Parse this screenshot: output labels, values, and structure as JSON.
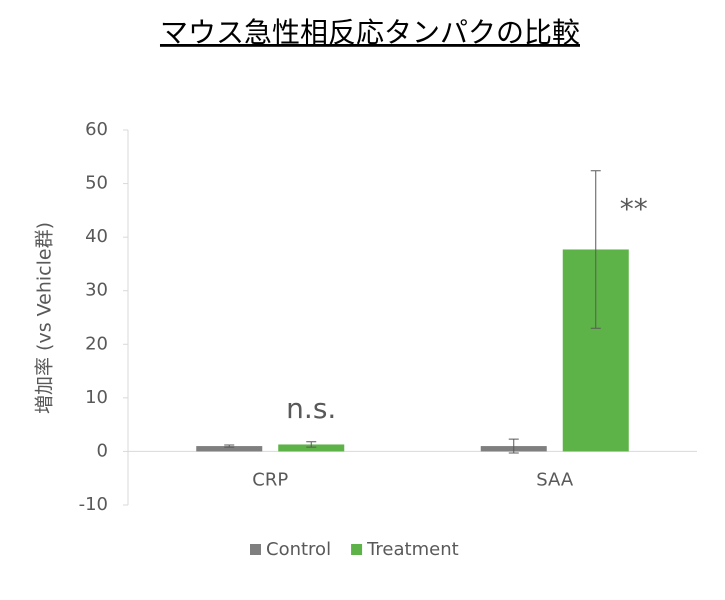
{
  "chart_data": {
    "type": "bar",
    "title": "マウス急性相反応タンパクの比較",
    "y_label": "増加率 (vs Vehicle群)",
    "categories": [
      "CRP",
      "SAA"
    ],
    "series": [
      {
        "name": "Control",
        "color": "#7f7f7f",
        "values": [
          1,
          1
        ],
        "errors": [
          0.2,
          1.3
        ]
      },
      {
        "name": "Treatment",
        "color": "#5db347",
        "values": [
          1.3,
          37.7
        ],
        "errors": [
          0.5,
          14.7
        ],
        "value_annotations": [
          "n.s.",
          "**"
        ]
      }
    ],
    "ylim": [
      -10,
      60
    ],
    "yticks": [
      -10,
      0,
      10,
      20,
      30,
      40,
      50,
      60
    ],
    "legend": "bottom"
  }
}
